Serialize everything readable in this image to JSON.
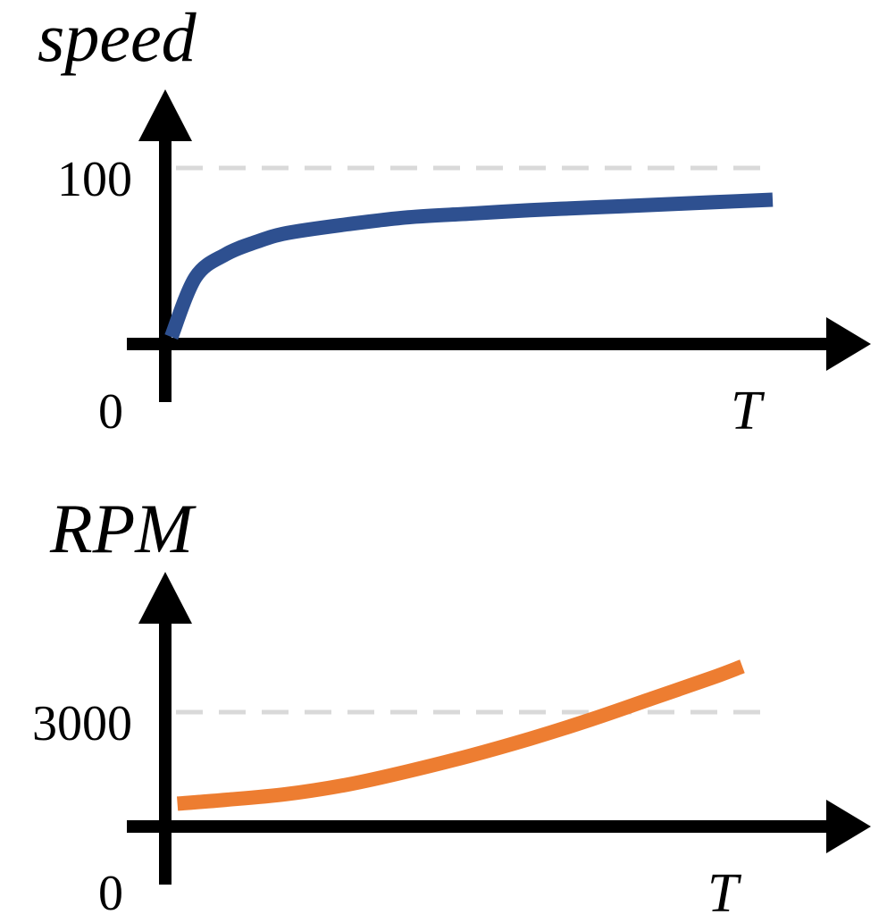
{
  "chart_data": [
    {
      "type": "line",
      "title": "",
      "ylabel": "speed",
      "xlabel": "T",
      "ylim": [
        0,
        100
      ],
      "yticks": [
        "0",
        "100"
      ],
      "reference_line": {
        "y": 100,
        "style": "dashed",
        "color": "#d9d9d9"
      },
      "grid": false,
      "series": [
        {
          "color": "#2e5090",
          "x": [
            0.01,
            0.05,
            0.1,
            0.15,
            0.2,
            0.3,
            0.4,
            0.5,
            0.6,
            0.7,
            0.8,
            0.9,
            1.0
          ],
          "values": [
            4,
            38,
            51,
            58,
            63,
            68,
            72,
            74,
            76,
            77.5,
            79,
            80.5,
            82
          ]
        }
      ]
    },
    {
      "type": "line",
      "title": "",
      "ylabel": "RPM",
      "xlabel": "T",
      "ylim": [
        0,
        5000
      ],
      "yticks": [
        "0",
        "3000"
      ],
      "reference_line": {
        "y": 3000,
        "style": "dashed",
        "color": "#d9d9d9"
      },
      "grid": false,
      "series": [
        {
          "color": "#ed7d31",
          "x": [
            0.02,
            0.1,
            0.2,
            0.3,
            0.4,
            0.5,
            0.6,
            0.7,
            0.8,
            0.9,
            0.95
          ],
          "values": [
            600,
            700,
            850,
            1100,
            1450,
            1850,
            2300,
            2800,
            3350,
            3900,
            4200
          ]
        }
      ]
    }
  ]
}
